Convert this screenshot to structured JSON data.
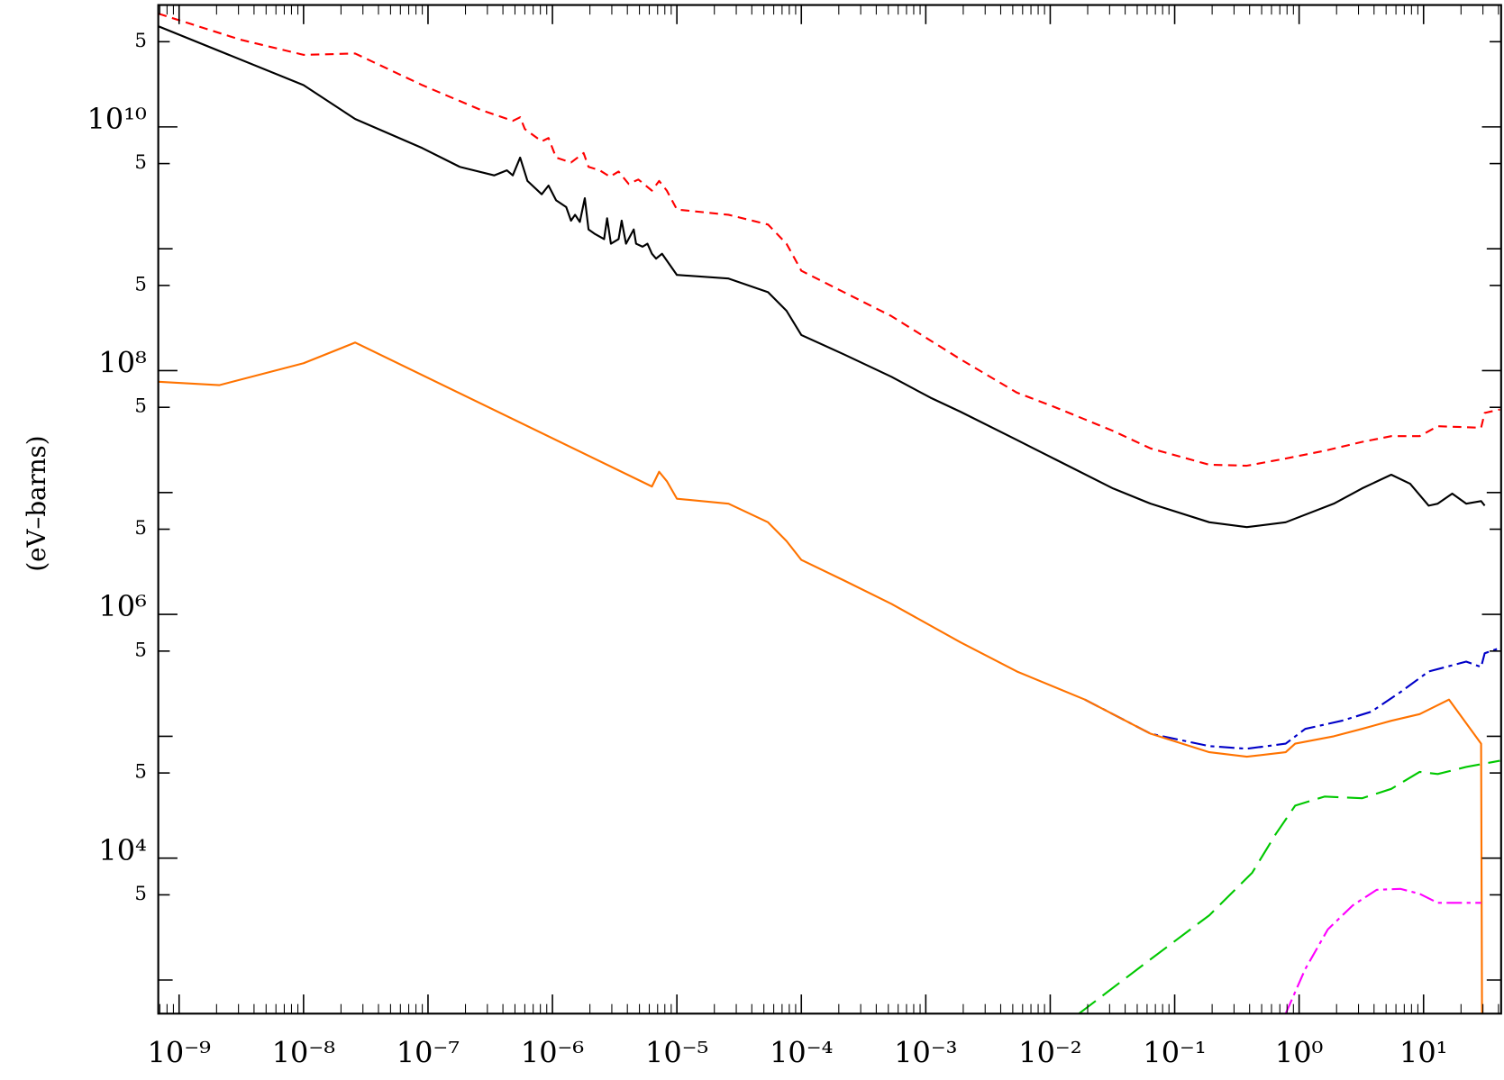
{
  "chart_data": {
    "type": "line",
    "y_label": "(eV–barns)",
    "xscale": "log",
    "yscale": "log",
    "xlim": [
      6.8e-10,
      42
    ],
    "ylim": [
      530,
      100000000000.0
    ],
    "xticks": [
      {
        "value": 1e-09,
        "label": "10⁻⁹"
      },
      {
        "value": 1e-08,
        "label": "10⁻⁸"
      },
      {
        "value": 1e-07,
        "label": "10⁻⁷"
      },
      {
        "value": 1e-06,
        "label": "10⁻⁶"
      },
      {
        "value": 1e-05,
        "label": "10⁻⁵"
      },
      {
        "value": 0.0001,
        "label": "10⁻⁴"
      },
      {
        "value": 0.001,
        "label": "10⁻³"
      },
      {
        "value": 0.01,
        "label": "10⁻²"
      },
      {
        "value": 0.1,
        "label": "10⁻¹"
      },
      {
        "value": 1,
        "label": "10⁰"
      },
      {
        "value": 10,
        "label": "10¹"
      }
    ],
    "yticks": [
      {
        "value": 50000000000.0,
        "label": "5"
      },
      {
        "value": 10000000000.0,
        "label": "10¹⁰"
      },
      {
        "value": 5000000000.0,
        "label": "5"
      },
      {
        "value": 500000000.0,
        "label": "5"
      },
      {
        "value": 100000000.0,
        "label": "10⁸"
      },
      {
        "value": 50000000.0,
        "label": "5"
      },
      {
        "value": 5000000.0,
        "label": "5"
      },
      {
        "value": 1000000.0,
        "label": "10⁶"
      },
      {
        "value": 500000.0,
        "label": "5"
      },
      {
        "value": 50000.0,
        "label": "5"
      },
      {
        "value": 10000.0,
        "label": "10⁴"
      },
      {
        "value": 5000.0,
        "label": "5"
      }
    ],
    "yticks_minor": [
      1000000000.0,
      10000000.0,
      100000.0,
      1000.0
    ],
    "series": [
      {
        "color": "#ff0000",
        "style": "dashed",
        "x": [
          6.8e-10,
          3.1e-09,
          1e-08,
          2.6e-08,
          9e-08,
          2.6e-07,
          4.8e-07,
          5.5e-07,
          6e-07,
          8.2e-07,
          9.3e-07,
          1.07e-06,
          1.41e-06,
          1.78e-06,
          1.95e-06,
          2.4e-06,
          2.9e-06,
          3.4e-06,
          4.1e-06,
          4.9e-06,
          6.3e-06,
          7.2e-06,
          8.3e-06,
          1e-05,
          2.6e-05,
          5.4e-05,
          7.6e-05,
          0.0001,
          0.00022,
          0.00053,
          0.0019,
          0.0054,
          0.011,
          0.032,
          0.064,
          0.19,
          0.38,
          0.78,
          1.6,
          3.2,
          5.5,
          9.3,
          13,
          29,
          31,
          41
        ],
        "values": [
          85000000000.0,
          52000000000.0,
          39000000000.0,
          40000000000.0,
          22000000000.0,
          13900000000.0,
          11200000000.0,
          12000000000.0,
          9600000000.0,
          7600000000.0,
          8100000000.0,
          5600000000.0,
          5100000000.0,
          6100000000.0,
          4700000000.0,
          4400000000.0,
          3900000000.0,
          4300000000.0,
          3400000000.0,
          3700000000.0,
          3000000000.0,
          3600000000.0,
          3000000000.0,
          2100000000.0,
          1900000000.0,
          1580000000.0,
          1100000000.0,
          660000000.0,
          440000000.0,
          280000000.0,
          124000000.0,
          66000000.0,
          50000000.0,
          32000000.0,
          23000000.0,
          16900000.0,
          16600000.0,
          19000000.0,
          22000000.0,
          26000000.0,
          29000000.0,
          29000000.0,
          35000000.0,
          34000000.0,
          45000000.0,
          48000000.0
        ]
      },
      {
        "color": "#000000",
        "style": "solid",
        "x": [
          6.8e-10,
          1e-08,
          2.6e-08,
          9e-08,
          1.8e-07,
          3.4e-07,
          4.3e-07,
          4.8e-07,
          5.5e-07,
          6.3e-07,
          8.2e-07,
          9.3e-07,
          1.07e-06,
          1.29e-06,
          1.41e-06,
          1.52e-06,
          1.66e-06,
          1.82e-06,
          1.95e-06,
          2.2e-06,
          2.6e-06,
          2.75e-06,
          2.95e-06,
          3.4e-06,
          3.6e-06,
          3.9e-06,
          4.5e-06,
          4.7e-06,
          5.3e-06,
          5.8e-06,
          6.3e-06,
          6.8e-06,
          7.6e-06,
          1e-05,
          2.6e-05,
          5.4e-05,
          7.6e-05,
          0.0001,
          0.00022,
          0.00053,
          0.00109,
          0.0019,
          0.0054,
          0.011,
          0.032,
          0.064,
          0.19,
          0.38,
          0.78,
          1.9,
          3.2,
          5.5,
          7.8,
          11,
          13,
          17,
          22,
          29,
          31
        ],
        "values": [
          67000000000.0,
          22000000000.0,
          11600000000.0,
          6700000000.0,
          4700000000.0,
          4000000000.0,
          4400000000.0,
          4000000000.0,
          5600000000.0,
          3600000000.0,
          2800000000.0,
          3300000000.0,
          2500000000.0,
          2200000000.0,
          1700000000.0,
          1900000000.0,
          1660000000.0,
          2600000000.0,
          1440000000.0,
          1320000000.0,
          1200000000.0,
          1780000000.0,
          1100000000.0,
          1200000000.0,
          1700000000.0,
          1100000000.0,
          1440000000.0,
          1100000000.0,
          1040000000.0,
          1100000000.0,
          910000000.0,
          830000000.0,
          910000000.0,
          610000000.0,
          570000000.0,
          440000000.0,
          310000000.0,
          196000000.0,
          136000000.0,
          89000000.0,
          60000000.0,
          46000000.0,
          27000000.0,
          18700000.0,
          10800000.0,
          8100000.0,
          5700000.0,
          5200000.0,
          5700000.0,
          8100000.0,
          10800000.0,
          14000000.0,
          11800000.0,
          7800000.0,
          8100000.0,
          9800000.0,
          8100000.0,
          8500000.0,
          7800000.0
        ]
      },
      {
        "color": "#0000c8",
        "style": "dash-dot",
        "x": [
          0.019,
          0.064,
          0.19,
          0.38,
          0.78,
          1.12,
          2.2,
          3.8,
          6.5,
          11,
          22,
          29,
          31,
          41
        ],
        "values": [
          200000.0,
          105000.0,
          83000.0,
          79000.0,
          87000.0,
          115000.0,
          134000.0,
          159000.0,
          230000.0,
          340000.0,
          410000.0,
          370000.0,
          480000.0,
          530000.0
        ]
      },
      {
        "color": "#ff7300",
        "style": "solid",
        "x": [
          6.8e-10,
          2.1e-09,
          1e-08,
          2.6e-08,
          6.3e-06,
          7.2e-06,
          8.3e-06,
          1e-05,
          2.6e-05,
          5.4e-05,
          7.6e-05,
          0.0001,
          0.00022,
          0.00053,
          0.0019,
          0.0054,
          0.019,
          0.064,
          0.19,
          0.38,
          0.78,
          0.93,
          1.9,
          3.2,
          5.5,
          9.3,
          16,
          29,
          29.5
        ],
        "values": [
          81000000.0,
          76000000.0,
          115000000.0,
          170000000.0,
          11200000.0,
          14800000.0,
          12400000.0,
          8900000.0,
          8100000.0,
          5700000.0,
          4000000.0,
          2800000.0,
          1900000.0,
          1220000.0,
          590000.0,
          340000.0,
          200000.0,
          105000.0,
          74000.0,
          68000.0,
          74000.0,
          87000.0,
          100000.0,
          115000.0,
          134000.0,
          152000.0,
          200000.0,
          87000.0,
          530
        ]
      },
      {
        "color": "#00c800",
        "style": "long-dash",
        "x": [
          0.017,
          0.064,
          0.19,
          0.42,
          0.65,
          0.93,
          1.6,
          3.2,
          5.5,
          9.3,
          13,
          22,
          41
        ],
        "values": [
          530,
          1480.0,
          3400.0,
          7600.0,
          15800.0,
          27000.0,
          32000.0,
          31000.0,
          37000.0,
          51000.0,
          49000.0,
          56000.0,
          63000.0
        ]
      },
      {
        "color": "#ff00ff",
        "style": "dash-dot",
        "x": [
          0.78,
          1.12,
          1.7,
          2.7,
          4.2,
          6.5,
          9.3,
          13,
          29
        ],
        "values": [
          530,
          1230.0,
          2600.0,
          4100.0,
          5500.0,
          5600.0,
          5100.0,
          4300.0,
          4300.0
        ]
      }
    ]
  }
}
